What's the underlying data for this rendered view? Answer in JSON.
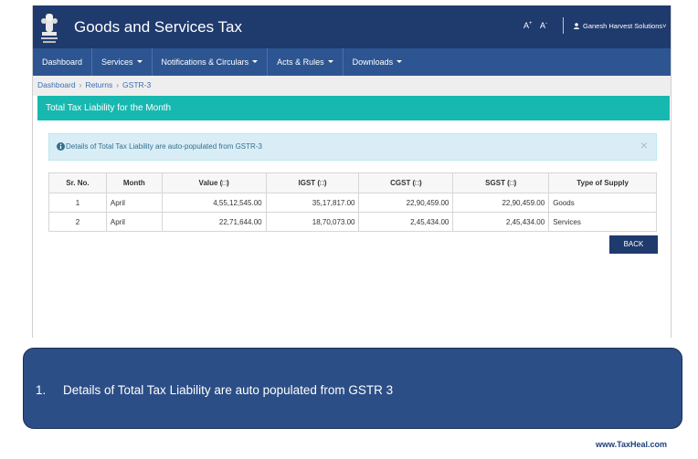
{
  "header": {
    "title": "Goods and Services Tax",
    "font_increase": "A",
    "font_decrease": "A",
    "user_name": "Ganesh Harvest Solutions",
    "user_chevron": "˅"
  },
  "nav": {
    "items": [
      {
        "label": "Dashboard",
        "has_dropdown": false
      },
      {
        "label": "Services",
        "has_dropdown": true
      },
      {
        "label": "Notifications & Circulars",
        "has_dropdown": true
      },
      {
        "label": "Acts & Rules",
        "has_dropdown": true
      },
      {
        "label": "Downloads",
        "has_dropdown": true
      }
    ]
  },
  "breadcrumb": [
    "Dashboard",
    "Returns",
    "GSTR-3"
  ],
  "breadcrumb_sep": "›",
  "section_title": "Total Tax Liability for the Month",
  "alert": {
    "text": "Details of Total Tax Liability are auto-populated from GSTR-3",
    "close": "×"
  },
  "table": {
    "headers": [
      "Sr. No.",
      "Month",
      "Value (□)",
      "IGST (□)",
      "CGST (□)",
      "SGST (□)",
      "Type of Supply"
    ],
    "rows": [
      [
        "1",
        "April",
        "4,55,12,545.00",
        "35,17,817.00",
        "22,90,459.00",
        "22,90,459.00",
        "Goods"
      ],
      [
        "2",
        "April",
        "22,71,644.00",
        "18,70,073.00",
        "2,45,434.00",
        "2,45,434.00",
        "Services"
      ]
    ]
  },
  "back_button": "BACK",
  "note": {
    "number": "1.",
    "text": "Details of Total Tax Liability are auto populated from GSTR 3"
  },
  "watermark": "www.TaxHeal.com",
  "colors": {
    "header_bg": "#1f3a6d",
    "nav_bg": "#2d5592",
    "section_bar": "#17b8b0",
    "alert_bg": "#d9edf7",
    "note_bg": "#2c4e86"
  }
}
